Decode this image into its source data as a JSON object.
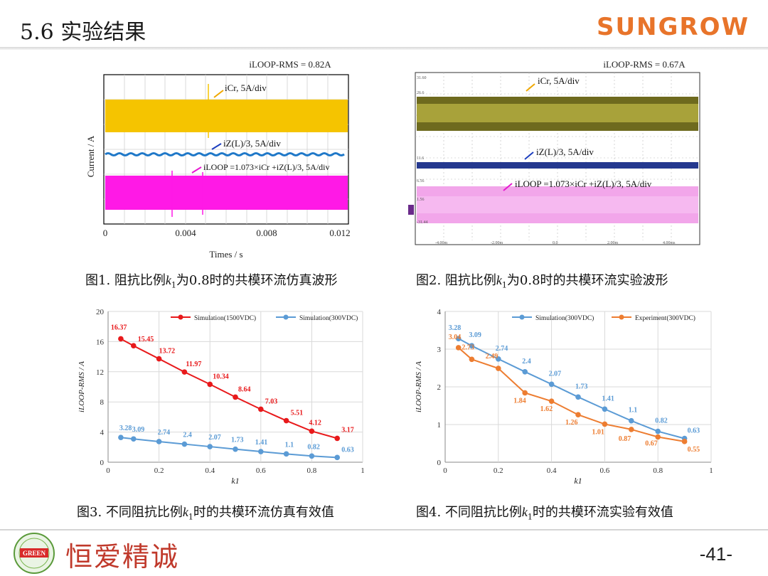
{
  "header": {
    "title": "5.6 实验结果",
    "logo": "SUNGROW"
  },
  "footer": {
    "page": "-41-",
    "motto": "恒爱精诚",
    "badge": "GREEN"
  },
  "figure1": {
    "rms": "iLOOP-RMS = 0.82A",
    "ylabel": "Current / A",
    "xlabel": "Times / s",
    "xticks": [
      "0",
      "0.004",
      "0.008",
      "0.012"
    ],
    "ann_cr": "iCr, 5A/div",
    "ann_z": "iZ(L)/3, 5A/div",
    "ann_loop": "iLOOP =1.073×iCr +iZ(L)/3, 5A/div",
    "caption_pre": "图1. 阻抗比例",
    "caption_post": "为0.8时的共模环流仿真波形"
  },
  "figure2": {
    "rms": "iLOOP-RMS = 0.67A",
    "ann_cr": "iCr, 5A/div",
    "ann_z": "iZ(L)/3, 5A/div",
    "ann_loop": "iLOOP =1.073×iCr +iZ(L)/3, 5A/div",
    "scope_left": [
      "31.60",
      "26.6",
      "11.6",
      "6.56",
      "1.56",
      "-31.44"
    ],
    "scope_bottom": [
      "-4.00m",
      "-2.00m",
      "0.0",
      "2.00m",
      "4.00ms"
    ],
    "caption_pre": "图2. 阻抗比例",
    "caption_post": "为0.8时的共模环流实验波形"
  },
  "chart_data": [
    {
      "type": "line",
      "xlabel": "k1",
      "ylabel": "iLOOP-RMS / A",
      "xlim": [
        0,
        1
      ],
      "ylim": [
        0,
        20
      ],
      "xticks": [
        "0",
        "0.2",
        "0.4",
        "0.6",
        "0.8",
        "1"
      ],
      "yticks": [
        "0",
        "4",
        "8",
        "12",
        "16",
        "20"
      ],
      "legend": "top",
      "grid": true,
      "series": [
        {
          "name": "Simulation(1500VDC)",
          "color": "#e8191b",
          "x": [
            0.05,
            0.1,
            0.2,
            0.3,
            0.4,
            0.5,
            0.6,
            0.7,
            0.8,
            0.9
          ],
          "values": [
            16.37,
            15.45,
            13.72,
            11.97,
            10.34,
            8.64,
            7.03,
            5.51,
            4.12,
            3.17
          ],
          "labels": [
            "16.37",
            "15.45",
            "13.72",
            "11.97",
            "10.34",
            "8.64",
            "7.03",
            "5.51",
            "4.12",
            "3.17"
          ]
        },
        {
          "name": "Simulation(300VDC)",
          "color": "#5b9bd5",
          "x": [
            0.05,
            0.1,
            0.2,
            0.3,
            0.4,
            0.5,
            0.6,
            0.7,
            0.8,
            0.9
          ],
          "values": [
            3.28,
            3.09,
            2.74,
            2.4,
            2.07,
            1.73,
            1.41,
            1.1,
            0.82,
            0.63
          ],
          "labels": [
            "3.28",
            "3.09",
            "2.74",
            "2.4",
            "2.07",
            "1.73",
            "1.41",
            "1.1",
            "0.82",
            "0.63"
          ]
        }
      ],
      "caption_pre": "图3. 不同阻抗比例",
      "caption_post": "时的共模环流仿真有效值"
    },
    {
      "type": "line",
      "xlabel": "k1",
      "ylabel": "iLOOP-RMS / A",
      "xlim": [
        0,
        1
      ],
      "ylim": [
        0,
        4
      ],
      "xticks": [
        "0",
        "0.2",
        "0.4",
        "0.6",
        "0.8",
        "1"
      ],
      "yticks": [
        "0",
        "1",
        "2",
        "3",
        "4"
      ],
      "legend": "top",
      "grid": true,
      "series": [
        {
          "name": "Simulation(300VDC)",
          "color": "#5b9bd5",
          "x": [
            0.05,
            0.1,
            0.2,
            0.3,
            0.4,
            0.5,
            0.6,
            0.7,
            0.8,
            0.9
          ],
          "values": [
            3.28,
            3.09,
            2.74,
            2.4,
            2.07,
            1.73,
            1.41,
            1.1,
            0.82,
            0.63
          ],
          "labels": [
            "3.28",
            "3.09",
            "2.74",
            "2.4",
            "2.07",
            "1.73",
            "1.41",
            "1.1",
            "0.82",
            "0.63"
          ]
        },
        {
          "name": "Experiment(300VDC)",
          "color": "#ed7d31",
          "x": [
            0.05,
            0.1,
            0.2,
            0.3,
            0.4,
            0.5,
            0.6,
            0.7,
            0.8,
            0.9
          ],
          "values": [
            3.04,
            2.73,
            2.49,
            1.84,
            1.62,
            1.26,
            1.01,
            0.87,
            0.67,
            0.55
          ],
          "labels": [
            "3.04",
            "2.73",
            "2.49",
            "1.84",
            "1.62",
            "1.26",
            "1.01",
            "0.87",
            "0.67",
            "0.55"
          ]
        }
      ],
      "caption_pre": "图4. 不同阻抗比例",
      "caption_post": "时的共模环流实验有效值"
    }
  ]
}
